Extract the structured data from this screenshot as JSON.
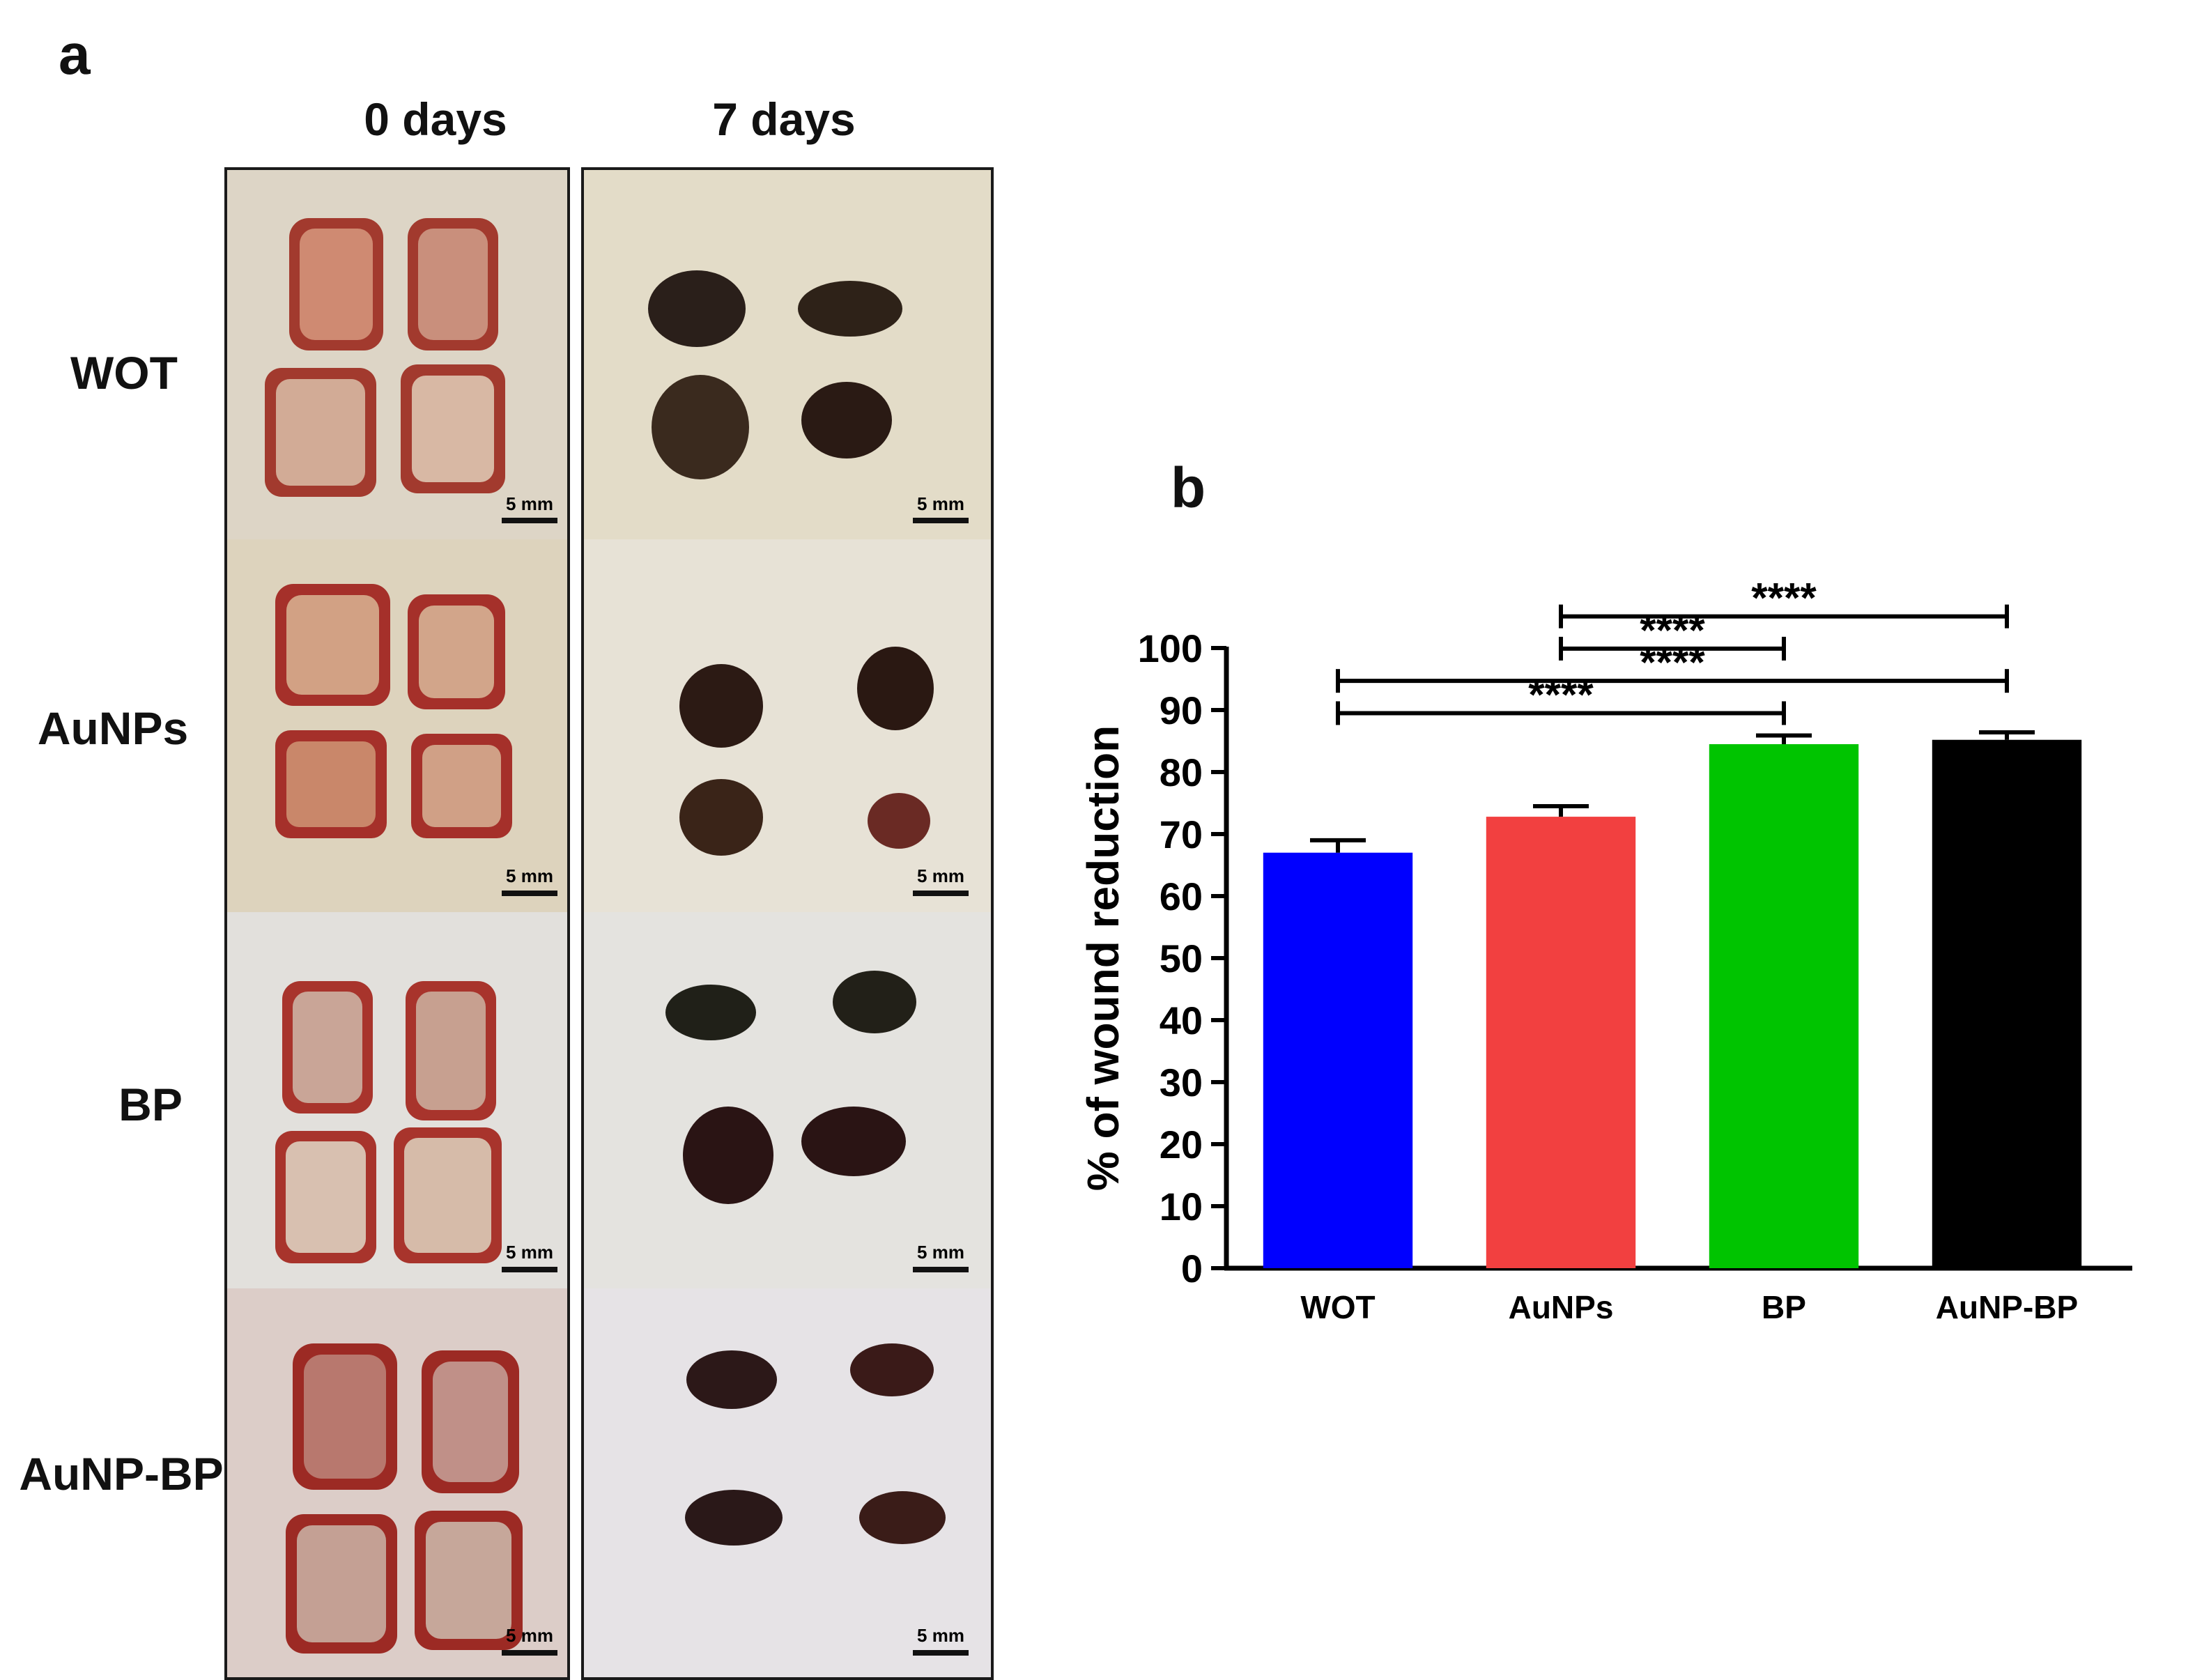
{
  "panel_a": {
    "letter": "a",
    "columns": [
      "0 days",
      "7 days"
    ],
    "rows": [
      "WOT",
      "AuNPs",
      "BP",
      "AuNP-BP"
    ],
    "scale_bar_label": "5 mm"
  },
  "panel_b": {
    "letter": "b"
  },
  "colors": {
    "skin": "#d9d2c2",
    "wound_red": "#9b2a24",
    "scab_dark": "#2a1a14",
    "frame": "#1a1a1a"
  },
  "chart_data": {
    "type": "bar",
    "categories": [
      "WOT",
      "AuNPs",
      "BP",
      "AuNP-BP"
    ],
    "values": [
      67,
      72.8,
      84.5,
      85.2
    ],
    "errors": [
      2,
      1.7,
      1.4,
      1.2
    ],
    "colors": [
      "#0000ff",
      "#f24040",
      "#00c400",
      "#000000"
    ],
    "ylabel": "% of wound reduction",
    "ylim": [
      0,
      100
    ],
    "yticks": [
      0,
      10,
      20,
      30,
      40,
      50,
      60,
      70,
      80,
      90,
      100
    ],
    "significance": [
      {
        "from": "WOT",
        "to": "BP",
        "label": "****"
      },
      {
        "from": "WOT",
        "to": "AuNP-BP",
        "label": "****"
      },
      {
        "from": "AuNPs",
        "to": "BP",
        "label": "****"
      },
      {
        "from": "AuNPs",
        "to": "AuNP-BP",
        "label": "****"
      }
    ]
  }
}
